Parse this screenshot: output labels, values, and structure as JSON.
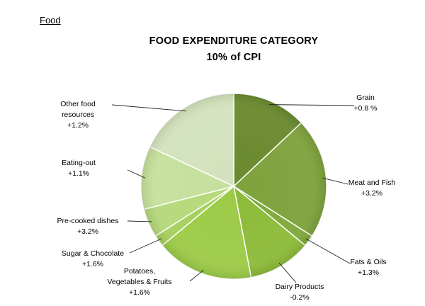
{
  "page": {
    "section_label": "Food"
  },
  "chart_data": {
    "type": "pie",
    "title": "FOOD EXPENDITURE CATEGORY",
    "subtitle": "10% of CPI",
    "start_angle_deg": 0,
    "direction": "clockwise",
    "slices": [
      {
        "label": "Grain",
        "change": "+0.8 %",
        "share": 13,
        "color": "#6a8a2e"
      },
      {
        "label": "Meat and Fish",
        "change": "+3.2%",
        "share": 21,
        "color": "#7ea23c"
      },
      {
        "label": "Fats & Oils",
        "change": "+1.3%",
        "share": 2,
        "color": "#7fa83a"
      },
      {
        "label": "Dairy Products",
        "change": "-0.2%",
        "share": 11,
        "color": "#8cbb38"
      },
      {
        "label": "Potatoes, Vegetables & Fruits",
        "label_lines": [
          "Potatoes,",
          "Vegetables & Fruits"
        ],
        "change": "+1.6%",
        "share": 17,
        "color": "#9ccb47"
      },
      {
        "label": "Sugar & Chocolate",
        "change": "+1.6%",
        "share": 2,
        "color": "#a6cf5c"
      },
      {
        "label": "Pre-cooked dishes",
        "change": "+3.2%",
        "share": 5,
        "color": "#b5d97a"
      },
      {
        "label": "Eating-out",
        "change": "+1.1%",
        "share": 11,
        "color": "#c5e09c"
      },
      {
        "label": "Other food resources",
        "label_lines": [
          "Other food",
          "resources"
        ],
        "change": "+1.2%",
        "share": 18,
        "color": "#d3e2bd"
      }
    ]
  }
}
